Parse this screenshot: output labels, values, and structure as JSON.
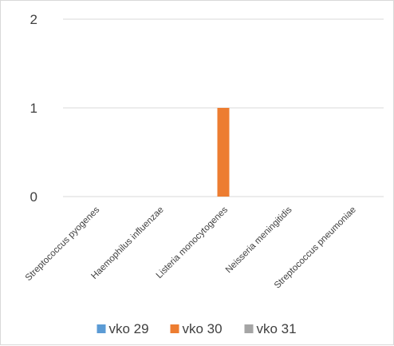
{
  "chart_data": {
    "type": "bar",
    "title": "",
    "xlabel": "",
    "ylabel": "",
    "categories": [
      "Streptococcus pyogenes",
      "Haemophilus influenzae",
      "Listeria monocytogenes",
      "Neisseria meningitidis",
      "Streptococcus pneumoniae"
    ],
    "series": [
      {
        "name": "vko 29",
        "color": "#5b9bd5",
        "values": [
          0,
          0,
          0,
          0,
          0
        ]
      },
      {
        "name": "vko 30",
        "color": "#ed7d31",
        "values": [
          0,
          0,
          1,
          0,
          0
        ]
      },
      {
        "name": "vko 31",
        "color": "#a5a5a5",
        "values": [
          0,
          0,
          0,
          0,
          0
        ]
      }
    ],
    "ylim": [
      0,
      2
    ],
    "yticks": [
      "0",
      "1",
      "2"
    ],
    "grid": true,
    "legend_position": "bottom",
    "gridline_color": "#d9d9d9"
  }
}
